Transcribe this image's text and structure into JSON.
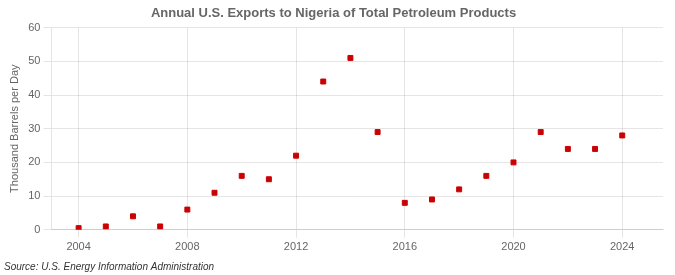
{
  "chart_data": {
    "type": "scatter",
    "title": "Annual U.S. Exports to Nigeria of Total Petroleum Products",
    "y_label": "Thousand Barrels per Day",
    "annotations": [
      "Source: U.S. Energy Information Administration"
    ],
    "x": [
      2004,
      2005,
      2006,
      2007,
      2008,
      2009,
      2010,
      2011,
      2012,
      2013,
      2014,
      2015,
      2016,
      2017,
      2018,
      2019,
      2020,
      2021,
      2022,
      2023,
      2024
    ],
    "values": [
      0.5,
      1.0,
      4.0,
      1.0,
      6.0,
      11.0,
      16.0,
      15.0,
      22.0,
      44.0,
      51.0,
      29.0,
      8.0,
      9.0,
      12.0,
      16.0,
      20.0,
      29.0,
      24.0,
      24.0,
      28.0
    ],
    "color": "#cc0000",
    "marker": "square",
    "xlim": [
      2003.0,
      2025.5
    ],
    "ylim": [
      0,
      60
    ],
    "xticks": [
      2004,
      2008,
      2012,
      2016,
      2020,
      2024
    ],
    "yticks": [
      0,
      10,
      20,
      30,
      40,
      50,
      60
    ],
    "grid": true
  }
}
